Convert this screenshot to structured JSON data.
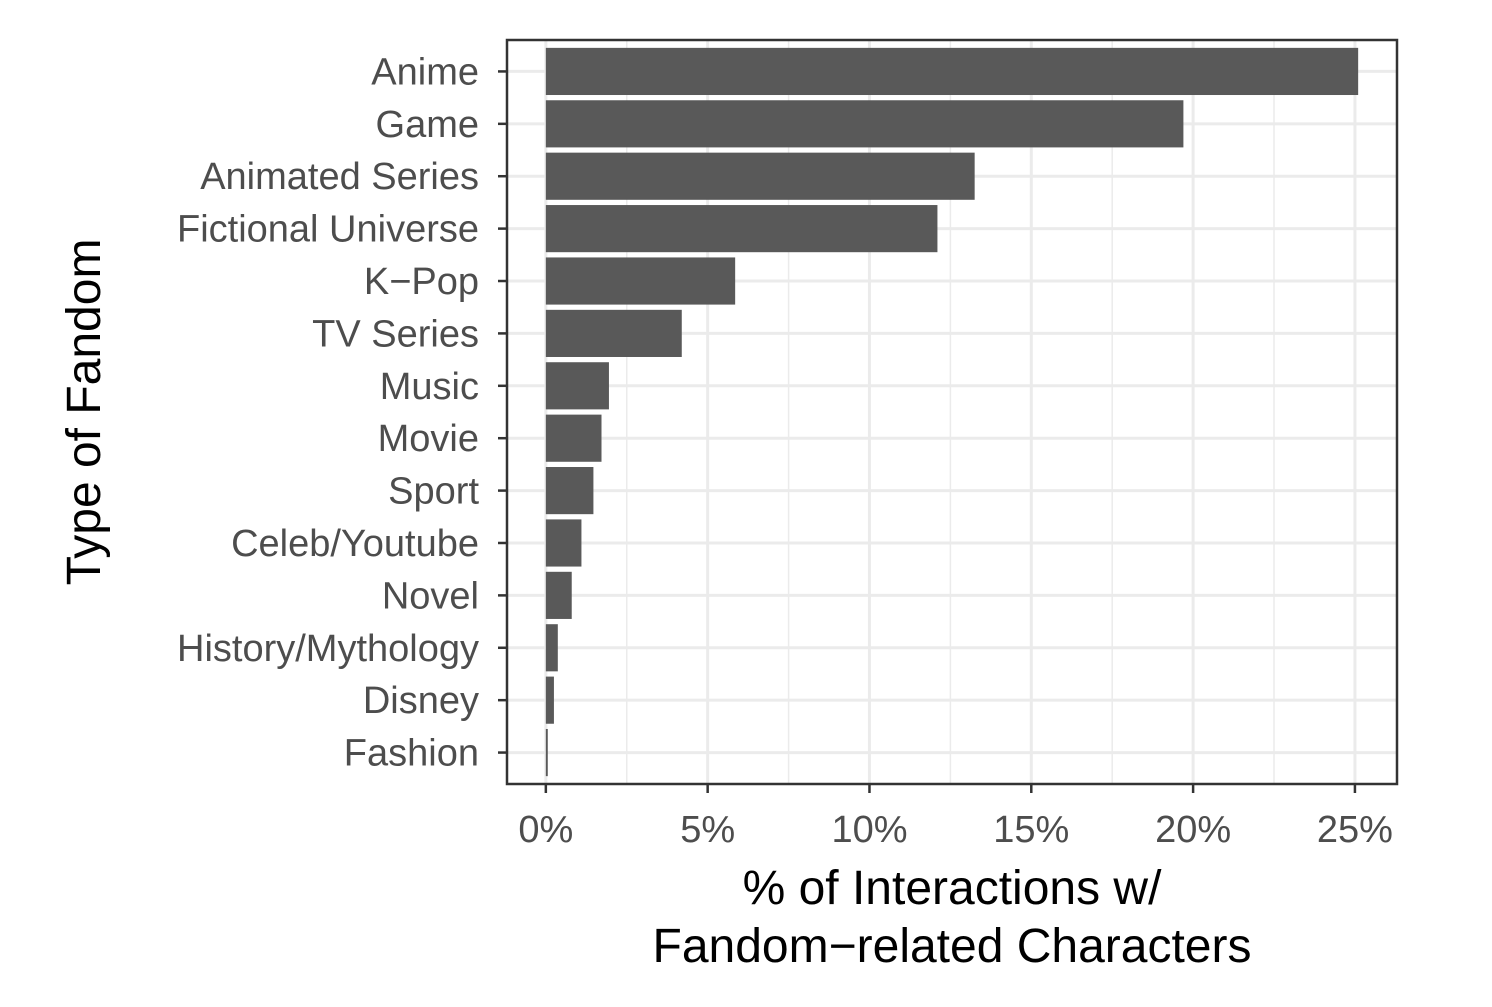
{
  "chart_data": {
    "type": "bar",
    "orientation": "horizontal",
    "categories": [
      "Anime",
      "Game",
      "Animated Series",
      "Fictional Universe",
      "K−Pop",
      "TV Series",
      "Music",
      "Movie",
      "Sport",
      "Celeb/Youtube",
      "Novel",
      "History/Mythology",
      "Disney",
      "Fashion"
    ],
    "values": [
      25.1,
      19.7,
      13.25,
      12.1,
      5.85,
      4.2,
      1.95,
      1.72,
      1.47,
      1.1,
      0.8,
      0.37,
      0.25,
      0.06
    ],
    "unit": "%",
    "xlabel_lines": [
      "% of Interactions w/",
      "Fandom−related Characters"
    ],
    "ylabel": "Type of Fandom",
    "xlim": [
      -1.2,
      26.3
    ],
    "x_ticks": [
      0,
      5,
      10,
      15,
      20,
      25
    ],
    "x_tick_labels": [
      "0%",
      "5%",
      "10%",
      "15%",
      "20%",
      "25%"
    ],
    "grid": true,
    "colors": {
      "bar": "#595959",
      "grid": "#ebebeb",
      "panel_border": "#333333",
      "tick_text": "#4d4d4d",
      "axis_title": "#000000"
    }
  }
}
